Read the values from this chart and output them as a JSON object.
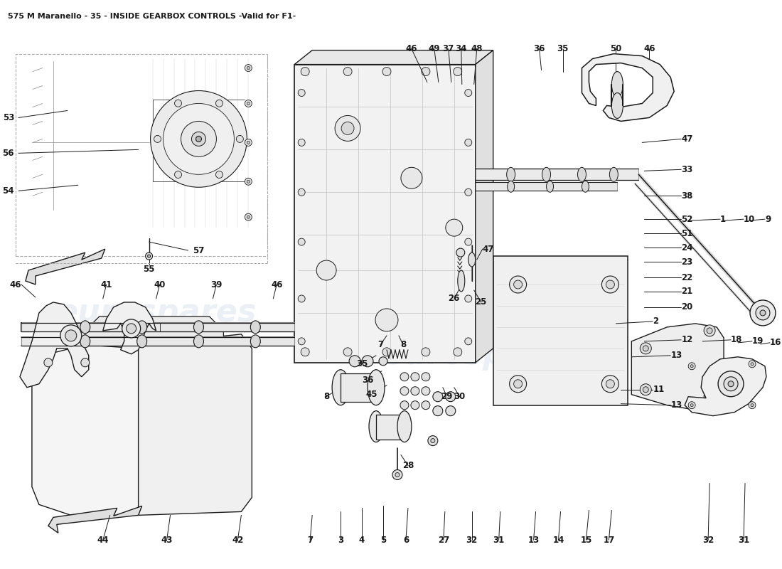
{
  "title": "575 M Maranello - 35 - INSIDE GEARBOX CONTROLS -Valid for F1-",
  "title_fontsize": 8.0,
  "bg_color": "#ffffff",
  "line_color": "#1a1a1a",
  "watermark_color": "#c8d4e8",
  "watermark_alpha": 0.35,
  "fig_width": 11.0,
  "fig_height": 8.0,
  "dpi": 100,
  "label_fontsize": 8.5
}
